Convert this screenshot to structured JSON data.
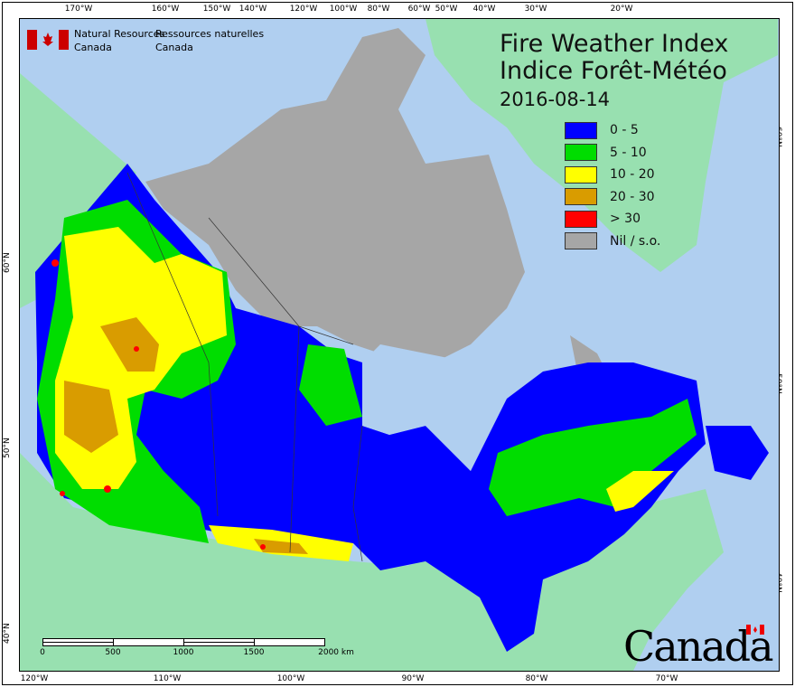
{
  "header": {
    "org_en": [
      "Natural Resources",
      "Canada"
    ],
    "org_fr": [
      "Ressources naturelles",
      "Canada"
    ],
    "title_en": "Fire Weather Index",
    "title_fr": "Indice Forêt-Météo",
    "date": "2016-08-14"
  },
  "legend": [
    {
      "label": "0 - 5",
      "color": "#0000ff"
    },
    {
      "label": "5 - 10",
      "color": "#00dd00"
    },
    {
      "label": "10 - 20",
      "color": "#ffff00"
    },
    {
      "label": "20 - 30",
      "color": "#d99c00"
    },
    {
      "label": "> 30",
      "color": "#ff0000"
    },
    {
      "label": "Nil / s.o.",
      "color": "#a6a6a6"
    }
  ],
  "colors": {
    "ocean": "#b0cff0",
    "land_outside": "#98e0b0",
    "no_data": "#a6a6a6"
  },
  "ticks": {
    "top": [
      "170°W",
      "160°W",
      "150°W",
      "140°W",
      "120°W",
      "100°W",
      "80°W",
      "60°W",
      "50°W",
      "40°W",
      "30°W",
      "20°W"
    ],
    "bottom": [
      "120°W",
      "110°W",
      "100°W",
      "90°W",
      "80°W",
      "70°W"
    ],
    "left": [
      "60°N",
      "50°N",
      "40°N"
    ],
    "right": [
      "60°N",
      "50°N",
      "40°N"
    ]
  },
  "scale": {
    "labels": [
      "0",
      "500",
      "1000",
      "1500",
      "2000 km"
    ]
  },
  "wordmark": "Canada"
}
